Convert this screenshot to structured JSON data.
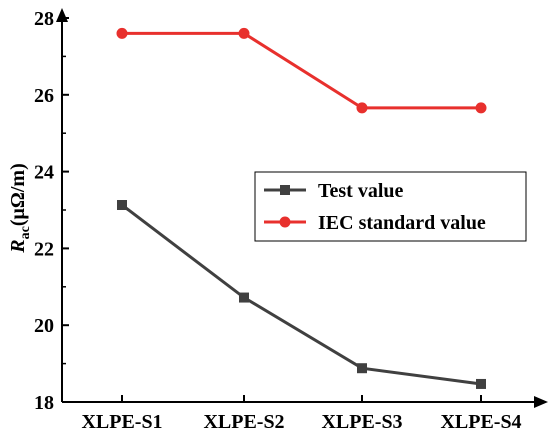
{
  "chart_data": {
    "type": "line",
    "categories": [
      "XLPE-S1",
      "XLPE-S2",
      "XLPE-S3",
      "XLPE-S4"
    ],
    "series": [
      {
        "name": "Test value",
        "values": [
          23.13,
          20.72,
          18.88,
          18.47
        ],
        "color": "#404040",
        "marker": "square"
      },
      {
        "name": "IEC standard value",
        "values": [
          27.6,
          27.6,
          25.66,
          25.66
        ],
        "color": "#e8302d",
        "marker": "circle"
      }
    ],
    "title": "",
    "xlabel": "",
    "ylabel": {
      "main": "R",
      "sub": "ac",
      "unit": "(μΩ/m)"
    },
    "ylim": [
      18,
      28
    ],
    "yticks": [
      "18",
      "20",
      "22",
      "24",
      "26",
      "28"
    ],
    "grid": false,
    "legend_position": "center-right"
  }
}
